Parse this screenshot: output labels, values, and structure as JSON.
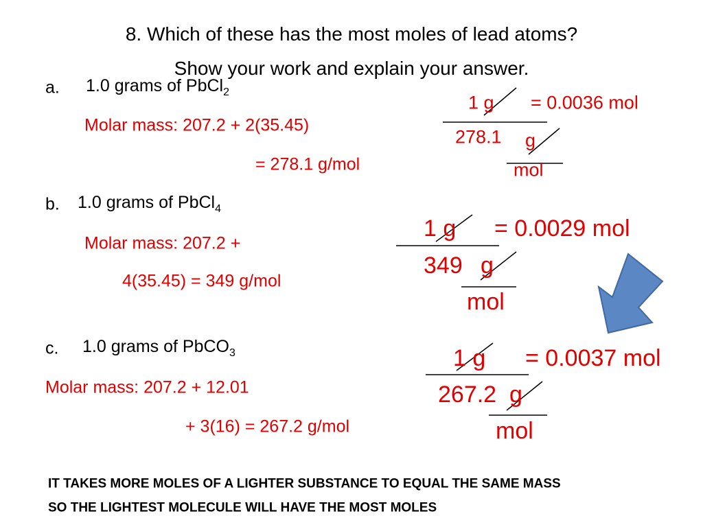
{
  "title": [
    "8.  Which of these has the most moles of lead atoms?",
    "Show your work and explain your answer."
  ],
  "items": [
    {
      "label": "a.",
      "text": "1.0 grams of PbCl",
      "sub": "2",
      "work": [
        "Molar mass:  207.2 + 2(35.45)",
        "= 278.1 g/mol"
      ],
      "calc": {
        "num": "1 g",
        "result": "= 0.0036 mol",
        "den": "278.1",
        "den_unit": "g",
        "unit": "mol"
      }
    },
    {
      "label": "b.",
      "text": "1.0 grams of PbCl",
      "sub": "4",
      "work": [
        "Molar mass:  207.2 +",
        "4(35.45) = 349 g/mol"
      ],
      "calc": {
        "num": "1 g",
        "result": "= 0.0029 mol",
        "den": "349",
        "den_unit": "g",
        "unit": "mol"
      }
    },
    {
      "label": "c.",
      "text": "1.0 grams of PbCO",
      "sub": "3",
      "work": [
        "Molar mass: 207.2 + 12.01",
        "+ 3(16) = 267.2 g/mol"
      ],
      "calc": {
        "num": "1 g",
        "result": "= 0.0037 mol",
        "den": "267.2",
        "den_unit": "g",
        "unit": "mol"
      }
    }
  ],
  "conclusion": [
    "IT TAKES MORE MOLES OF A LIGHTER SUBSTANCE TO EQUAL THE SAME MASS",
    "SO THE LIGHTEST MOLECULE WILL HAVE THE MOST MOLES"
  ]
}
